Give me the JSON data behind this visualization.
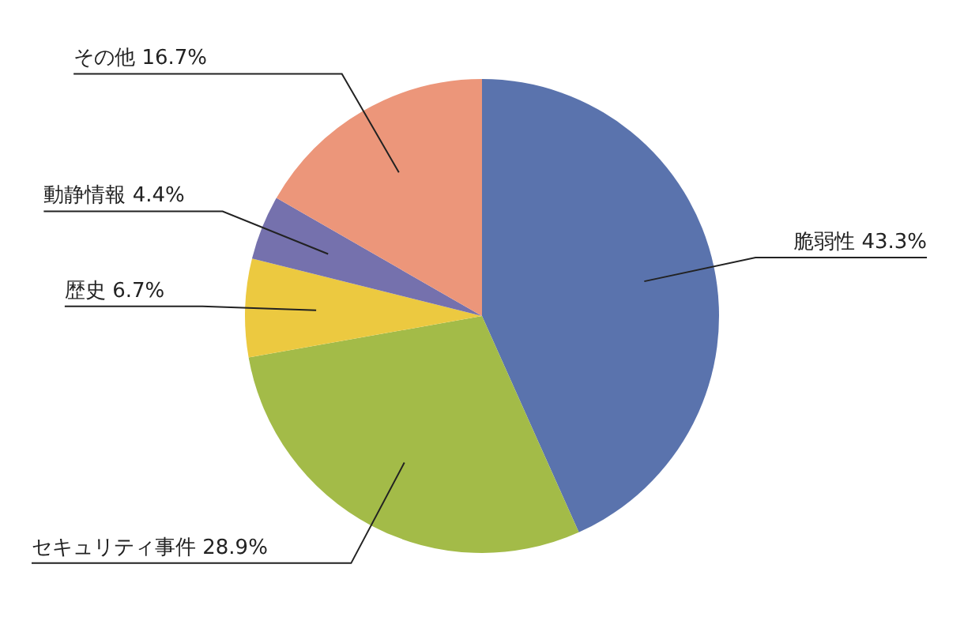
{
  "chart_data": {
    "type": "pie",
    "categories": [
      "脆弱性",
      "セキュリティ事件",
      "歴史",
      "動静情報",
      "その他"
    ],
    "values": [
      43.3,
      28.9,
      6.7,
      4.4,
      16.7
    ],
    "colors": [
      "#5a73ad",
      "#a3bb48",
      "#ecc940",
      "#7571ad",
      "#ec967a"
    ],
    "value_labels": [
      "43.3%",
      "28.9%",
      "6.7%",
      "4.4%",
      "16.7%"
    ],
    "legend": false
  }
}
